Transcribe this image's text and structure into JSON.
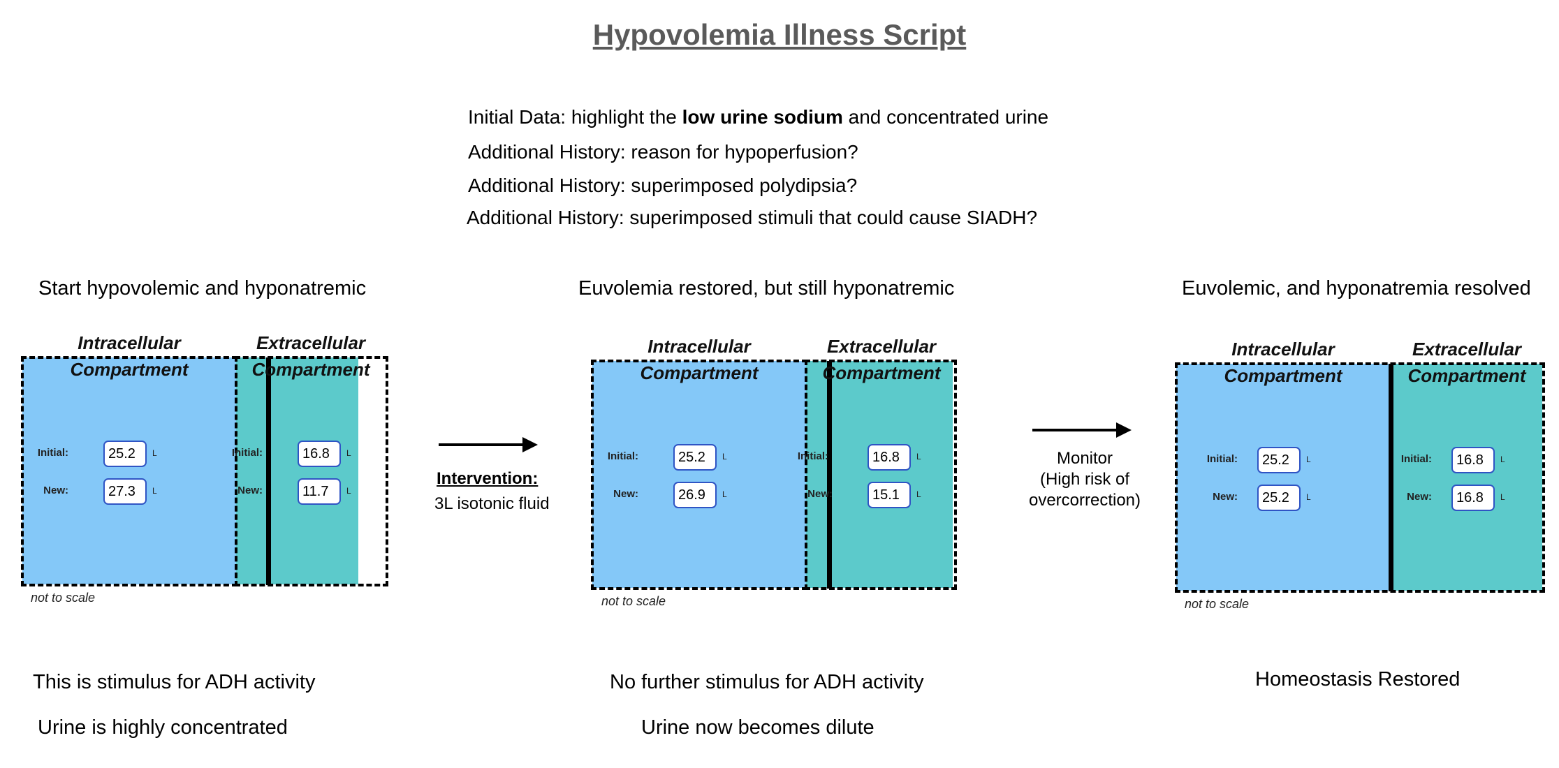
{
  "title": "Hypovolemia Illness Script",
  "info_lines": {
    "l1_prefix": "Initial Data: highlight the ",
    "l1_bold": "low urine sodium",
    "l1_suffix": " and concentrated urine",
    "l2": "Additional History:  reason for hypoperfusion?",
    "l3": "Additional History:  superimposed polydipsia?",
    "l4": "Additional History: superimposed stimuli that could cause SIADH?"
  },
  "labels": {
    "intracellular": "Intracellular",
    "extracellular": "Extracellular",
    "compartment": "Compartment",
    "initial": "Initial:",
    "new": "New:",
    "unit": "L",
    "not_to_scale": "not to scale"
  },
  "stages": [
    {
      "title": "Start hypovolemic and hyponatremic",
      "ic_initial": "25.2",
      "ic_new": "27.3",
      "ec_initial": "16.8",
      "ec_new": "11.7",
      "caption1": "This is stimulus for ADH activity",
      "caption2": "Urine is highly concentrated"
    },
    {
      "title": "Euvolemia restored, but still hyponatremic",
      "ic_initial": "25.2",
      "ic_new": "26.9",
      "ec_initial": "16.8",
      "ec_new": "15.1",
      "caption1": "No further stimulus for ADH activity",
      "caption2": "Urine now becomes dilute"
    },
    {
      "title": "Euvolemic, and hyponatremia resolved",
      "ic_initial": "25.2",
      "ic_new": "25.2",
      "ec_initial": "16.8",
      "ec_new": "16.8",
      "caption1": "Homeostasis Restored"
    }
  ],
  "intervention": {
    "title": "Intervention:",
    "text": "3L isotonic fluid"
  },
  "monitor": {
    "line1": "Monitor",
    "line2": "(High risk of",
    "line3": "overcorrection)"
  },
  "colors": {
    "intracellular_fill": "#84c8f8",
    "extracellular_fill": "#5ccacb",
    "value_box_border": "#2f54c4",
    "title": "#5a5a5a"
  }
}
